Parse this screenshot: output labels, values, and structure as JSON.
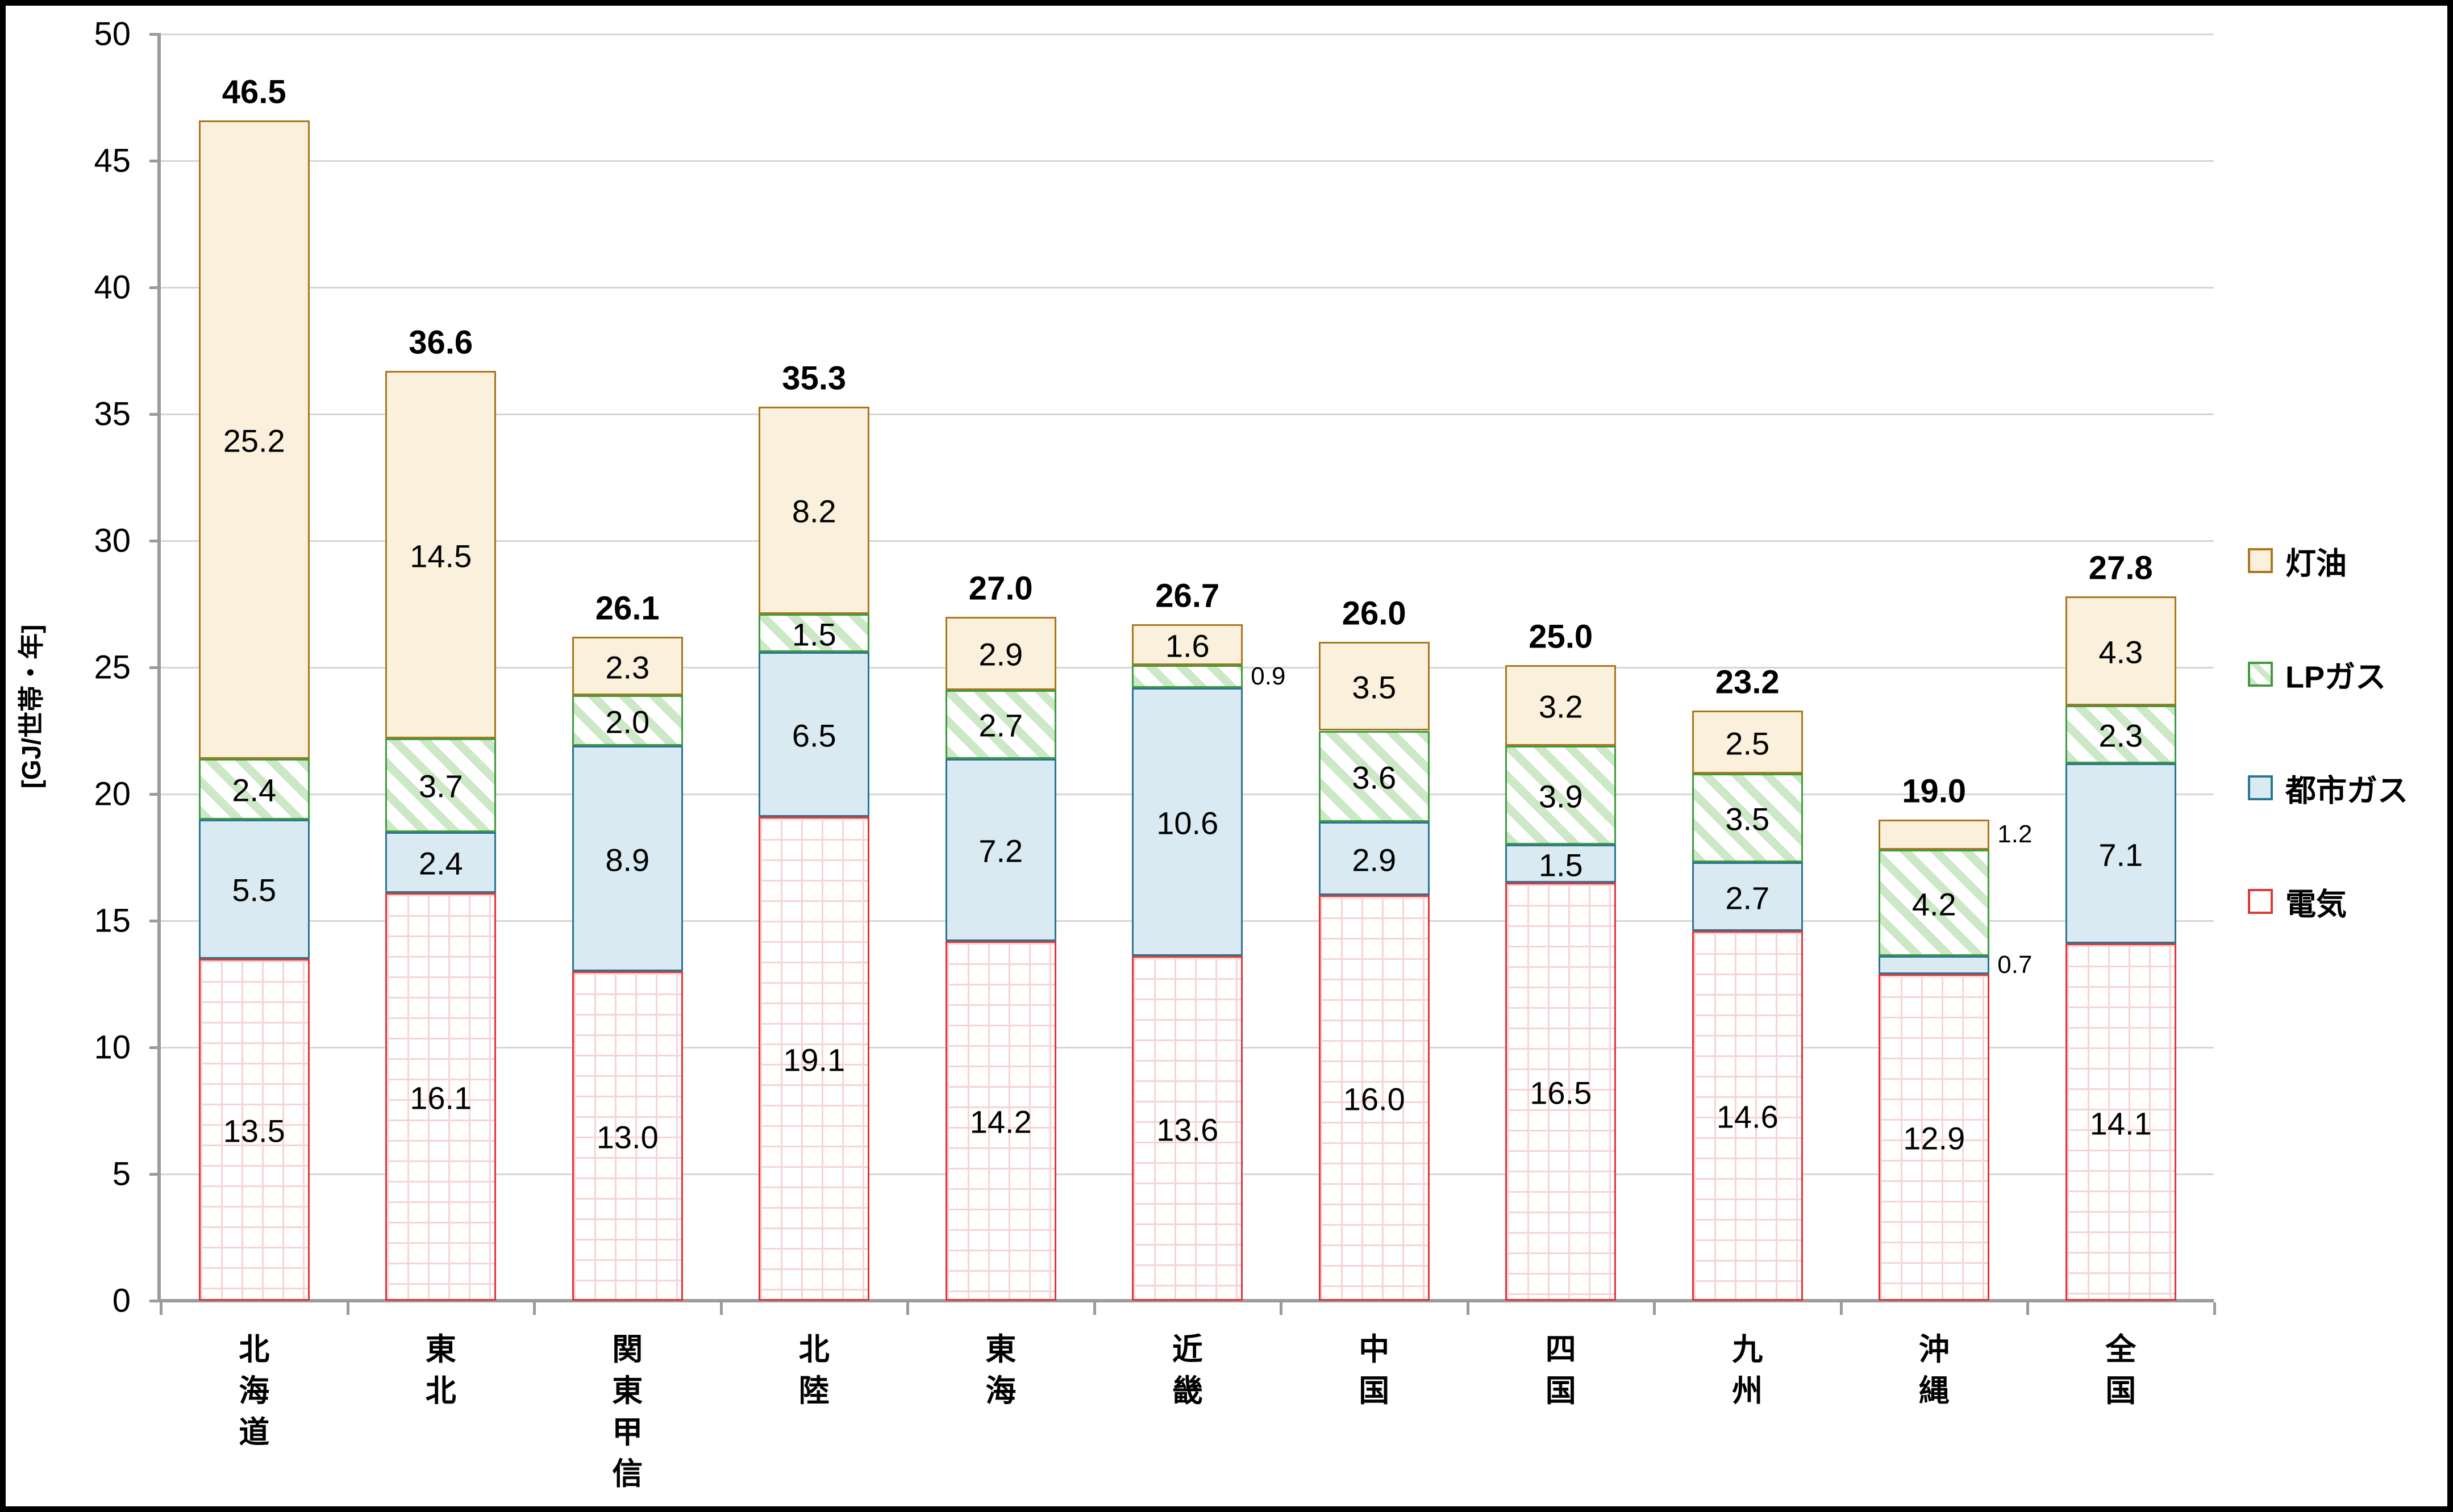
{
  "y_axis": {
    "title": "[GJ/世帯・年]",
    "min": 0,
    "max": 50,
    "step": 5
  },
  "legend": {
    "items": [
      "灯油",
      "LPガス",
      "都市ガス",
      "電気"
    ]
  },
  "colors": {
    "kerosene_fill": "#faf0dc",
    "kerosene_border": "#a8771e",
    "lp_gas_stripe": "#cce8c6",
    "lp_gas_border": "#3d9b3d",
    "city_gas_fill": "#daeaf2",
    "city_gas_border": "#2a7593",
    "electricity_grid": "#f7d4d4",
    "electricity_border": "#e03636",
    "gridline": "#d6d6d6",
    "axis": "#9b9b9b"
  },
  "chart_data": {
    "type": "bar",
    "stacked": true,
    "title": "",
    "xlabel": "",
    "ylabel": "[GJ/世帯・年]",
    "ylim": [
      0,
      50
    ],
    "grid": "horizontal",
    "legend_position": "right",
    "categories": [
      "北海道",
      "東北",
      "関東甲信",
      "北陸",
      "東海",
      "近畿",
      "中国",
      "四国",
      "九州",
      "沖縄",
      "全国"
    ],
    "category_keys": [
      "hokkaido",
      "tohoku",
      "kanto-koshin",
      "hokuriku",
      "tokai",
      "kinki",
      "chugoku",
      "shikoku",
      "kyushu",
      "okinawa",
      "zenkoku"
    ],
    "series": [
      {
        "name": "電気",
        "key": "electricity",
        "pattern": "grid",
        "fill": "#ffffff",
        "pattern_color": "#f7d4d4",
        "border": "#e03636",
        "values": [
          13.5,
          16.1,
          13.0,
          19.1,
          14.2,
          13.6,
          16.0,
          16.5,
          14.6,
          12.9,
          14.1
        ]
      },
      {
        "name": "都市ガス",
        "key": "city-gas",
        "pattern": "solid",
        "fill": "#daeaf2",
        "pattern_color": "",
        "border": "#2a7593",
        "values": [
          5.5,
          2.4,
          8.9,
          6.5,
          7.2,
          10.6,
          2.9,
          1.5,
          2.7,
          0.7,
          7.1
        ]
      },
      {
        "name": "LPガス",
        "key": "lp-gas",
        "pattern": "diagonal",
        "fill": "#ffffff",
        "pattern_color": "#cce8c6",
        "border": "#3d9b3d",
        "values": [
          2.4,
          3.7,
          2.0,
          1.5,
          2.7,
          0.9,
          3.6,
          3.9,
          3.5,
          4.2,
          2.3
        ]
      },
      {
        "name": "灯油",
        "key": "kerosene",
        "pattern": "solid",
        "fill": "#faf0dc",
        "pattern_color": "",
        "border": "#a8771e",
        "values": [
          25.2,
          14.5,
          2.3,
          8.2,
          2.9,
          1.6,
          3.5,
          3.2,
          2.5,
          1.2,
          4.3
        ]
      }
    ],
    "totals": [
      "46.5",
      "36.6",
      "26.1",
      "35.3",
      "27.0",
      "26.7",
      "26.0",
      "25.0",
      "23.2",
      "19.0",
      "27.8"
    ]
  }
}
